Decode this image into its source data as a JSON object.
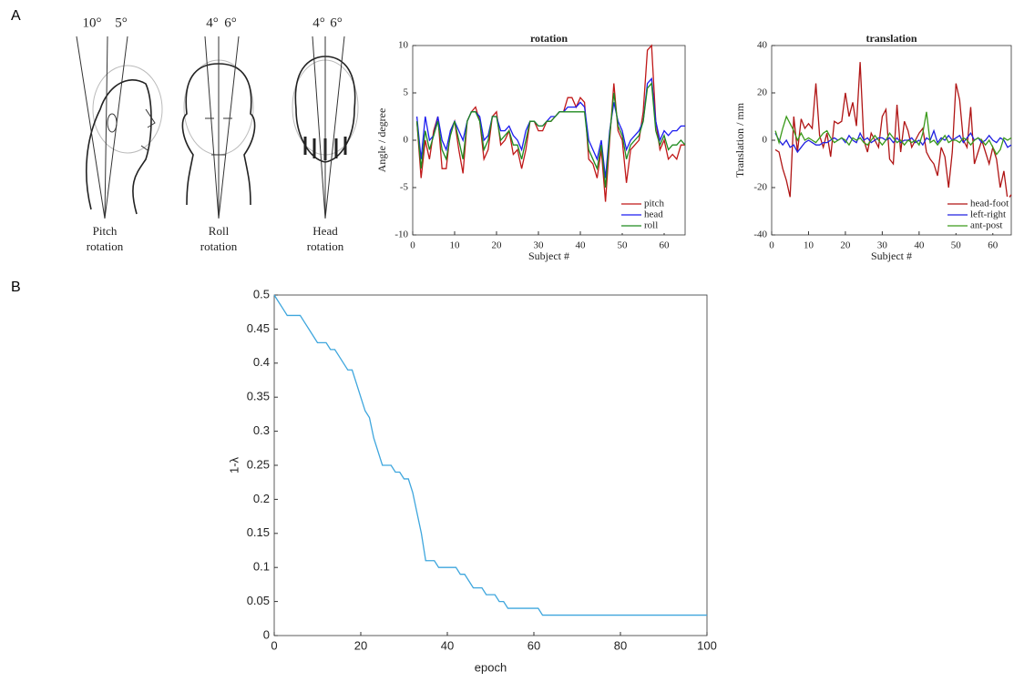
{
  "panel_labels": [
    "A",
    "B"
  ],
  "illustrations": [
    {
      "angles": [
        "10°",
        "5°"
      ],
      "label": [
        "Pitch",
        "rotation"
      ]
    },
    {
      "angles": [
        "4°",
        "6°"
      ],
      "label": [
        "Roll",
        "rotation"
      ]
    },
    {
      "angles": [
        "4°",
        "6°"
      ],
      "label": [
        "Head",
        "rotation"
      ]
    }
  ],
  "chart_data": [
    {
      "type": "line",
      "title": "rotation",
      "xlabel": "Subject #",
      "ylabel": "Angle / degree",
      "x": [
        1,
        2,
        3,
        4,
        5,
        6,
        7,
        8,
        9,
        10,
        11,
        12,
        13,
        14,
        15,
        16,
        17,
        18,
        19,
        20,
        21,
        22,
        23,
        24,
        25,
        26,
        27,
        28,
        29,
        30,
        31,
        32,
        33,
        34,
        35,
        36,
        37,
        38,
        39,
        40,
        41,
        42,
        43,
        44,
        45,
        46,
        47,
        48,
        49,
        50,
        51,
        52,
        53,
        54,
        55,
        56,
        57,
        58,
        59,
        60,
        61,
        62,
        63,
        64,
        65
      ],
      "xlim": [
        0,
        65
      ],
      "xticks": [
        0,
        10,
        20,
        30,
        40,
        50,
        60
      ],
      "ylim": [
        -10,
        10
      ],
      "yticks": [
        -10,
        -5,
        0,
        5,
        10
      ],
      "legend": "lower right",
      "series": [
        {
          "name": "pitch",
          "color": "#c01818",
          "values": [
            2,
            -4,
            0,
            -2,
            1,
            2.5,
            -3,
            -3,
            1,
            2,
            -1,
            -3.5,
            2,
            3,
            3.5,
            2,
            -2,
            -1,
            2.5,
            3,
            -0.5,
            0,
            1,
            -1.5,
            -1,
            -3,
            -1,
            2,
            2,
            1,
            1,
            2,
            2,
            2.5,
            3,
            3,
            4.5,
            4.5,
            3.5,
            4.5,
            4,
            -2,
            -2.5,
            -4,
            -1,
            -6.5,
            0,
            6,
            1,
            0,
            -4.5,
            -1,
            -0.5,
            0,
            3,
            9.5,
            10,
            2,
            -1,
            0,
            -2,
            -1.5,
            -2,
            -0.5,
            -0.5
          ]
        },
        {
          "name": "head",
          "color": "#1c1cf0",
          "values": [
            2.5,
            -2,
            2.5,
            0,
            0.5,
            2.5,
            0,
            -1,
            1,
            2,
            1,
            0,
            2,
            3,
            3,
            2.5,
            0,
            0.5,
            2.5,
            2.5,
            1,
            1,
            1.5,
            0.5,
            0,
            -1,
            1,
            2,
            2,
            1.5,
            1.5,
            2,
            2.5,
            2.5,
            3,
            3,
            3.5,
            3.5,
            3.5,
            4,
            3.5,
            0,
            -1,
            -2,
            0,
            -4,
            1,
            4,
            2,
            1,
            -1,
            0,
            0.5,
            1,
            2,
            6,
            6.5,
            2,
            0,
            1,
            0.5,
            1,
            1,
            1.5,
            1.5
          ]
        },
        {
          "name": "roll",
          "color": "#1f8a1f",
          "values": [
            2,
            -3,
            1,
            -1,
            0.5,
            2,
            -1,
            -2,
            0.5,
            2,
            0,
            -2,
            2,
            3,
            3,
            2,
            -1,
            0,
            2.5,
            2.5,
            0,
            0.5,
            1,
            -0.5,
            -0.5,
            -2,
            0,
            2,
            2,
            1.5,
            1.5,
            2,
            2,
            2.5,
            3,
            3,
            3,
            3,
            3,
            3,
            3,
            -1,
            -2,
            -3,
            -0.5,
            -5,
            0.5,
            5,
            1.5,
            0.5,
            -2,
            -0.5,
            0,
            0.5,
            2,
            5.5,
            6,
            1,
            -0.5,
            0.5,
            -1,
            -0.5,
            -0.5,
            0,
            -0.5
          ]
        }
      ]
    },
    {
      "type": "line",
      "title": "translation",
      "xlabel": "Subject #",
      "ylabel": "Translation / mm",
      "x": [
        1,
        2,
        3,
        4,
        5,
        6,
        7,
        8,
        9,
        10,
        11,
        12,
        13,
        14,
        15,
        16,
        17,
        18,
        19,
        20,
        21,
        22,
        23,
        24,
        25,
        26,
        27,
        28,
        29,
        30,
        31,
        32,
        33,
        34,
        35,
        36,
        37,
        38,
        39,
        40,
        41,
        42,
        43,
        44,
        45,
        46,
        47,
        48,
        49,
        50,
        51,
        52,
        53,
        54,
        55,
        56,
        57,
        58,
        59,
        60,
        61,
        62,
        63,
        64,
        65
      ],
      "xlim": [
        0,
        65
      ],
      "xticks": [
        0,
        10,
        20,
        30,
        40,
        50,
        60
      ],
      "ylim": [
        -40,
        40
      ],
      "yticks": [
        -40,
        -20,
        0,
        20,
        40
      ],
      "legend": "lower right",
      "series": [
        {
          "name": "head-foot",
          "color": "#b01515",
          "values": [
            -4,
            -5,
            -12,
            -17,
            -24,
            10,
            -5,
            9,
            5,
            7,
            5,
            24,
            2,
            -3,
            3,
            -7,
            8,
            7,
            8,
            20,
            10,
            16,
            6,
            33,
            0,
            -5,
            3,
            0,
            -3,
            10,
            13,
            -8,
            -10,
            15,
            -5,
            8,
            4,
            -3,
            0,
            3,
            5,
            -5,
            -8,
            -10,
            -15,
            -3,
            -7,
            -20,
            -5,
            24,
            17,
            0,
            -3,
            14,
            -10,
            -5,
            0,
            -5,
            -10,
            -3,
            -8,
            -20,
            -13,
            -25,
            -23
          ]
        },
        {
          "name": "left-right",
          "color": "#2020e0",
          "values": [
            3,
            0,
            -2,
            0,
            -3,
            -2,
            -5,
            -3,
            -1,
            0,
            -1,
            -2,
            -2,
            -1,
            -1,
            0,
            1,
            0,
            1,
            -1,
            2,
            0,
            -1,
            3,
            0,
            1,
            -1,
            0,
            1,
            1,
            0,
            1,
            -1,
            1,
            -1,
            0,
            0,
            1,
            -1,
            0,
            -2,
            1,
            0,
            4,
            -1,
            1,
            0,
            2,
            0,
            1,
            2,
            -1,
            1,
            3,
            0,
            1,
            -1,
            0,
            2,
            0,
            -1,
            1,
            0,
            -3,
            -2
          ]
        },
        {
          "name": "ant-post",
          "color": "#3a9a1a",
          "values": [
            4,
            -1,
            5,
            10,
            7,
            4,
            0,
            3,
            0,
            1,
            0,
            -1,
            1,
            3,
            4,
            1,
            -1,
            0,
            1,
            0,
            -2,
            1,
            0,
            1,
            -1,
            -2,
            0,
            2,
            0,
            -2,
            0,
            3,
            1,
            -1,
            0,
            -2,
            0,
            -1,
            0,
            -2,
            3,
            12,
            -1,
            0,
            -2,
            0,
            2,
            -1,
            0,
            0,
            -1,
            1,
            0,
            -2,
            0,
            1,
            0,
            -2,
            0,
            -3,
            -6,
            -4,
            1,
            0,
            1
          ]
        }
      ]
    },
    {
      "type": "line",
      "xlabel": "epoch",
      "ylabel": "1-λ",
      "x": [
        0,
        1,
        2,
        3,
        4,
        5,
        6,
        7,
        8,
        9,
        10,
        11,
        12,
        13,
        14,
        15,
        16,
        17,
        18,
        19,
        20,
        21,
        22,
        23,
        24,
        25,
        26,
        27,
        28,
        29,
        30,
        31,
        32,
        33,
        34,
        35,
        36,
        37,
        38,
        39,
        40,
        41,
        42,
        43,
        44,
        45,
        46,
        47,
        48,
        49,
        50,
        51,
        52,
        53,
        54,
        55,
        56,
        57,
        58,
        59,
        60,
        61,
        62,
        63,
        64,
        65,
        66,
        67,
        68,
        69,
        70,
        71,
        72,
        73,
        74,
        75,
        76,
        77,
        78,
        79,
        80,
        81,
        82,
        83,
        84,
        85,
        86,
        87,
        88,
        89,
        90,
        91,
        92,
        93,
        94,
        95,
        96,
        97,
        98,
        99,
        100
      ],
      "xlim": [
        0,
        100
      ],
      "xticks": [
        0,
        20,
        40,
        60,
        80,
        100
      ],
      "ylim": [
        0,
        0.5
      ],
      "yticks": [
        0,
        0.05,
        0.1,
        0.15,
        0.2,
        0.25,
        0.3,
        0.35,
        0.4,
        0.45,
        0.5
      ],
      "series": [
        {
          "color": "#3ea6dd",
          "values": [
            0.5,
            0.49,
            0.48,
            0.47,
            0.47,
            0.47,
            0.47,
            0.46,
            0.45,
            0.44,
            0.43,
            0.43,
            0.43,
            0.42,
            0.42,
            0.41,
            0.4,
            0.39,
            0.39,
            0.37,
            0.35,
            0.33,
            0.32,
            0.29,
            0.27,
            0.25,
            0.25,
            0.25,
            0.24,
            0.24,
            0.23,
            0.23,
            0.21,
            0.18,
            0.15,
            0.11,
            0.11,
            0.11,
            0.1,
            0.1,
            0.1,
            0.1,
            0.1,
            0.09,
            0.09,
            0.08,
            0.07,
            0.07,
            0.07,
            0.06,
            0.06,
            0.06,
            0.05,
            0.05,
            0.04,
            0.04,
            0.04,
            0.04,
            0.04,
            0.04,
            0.04,
            0.04,
            0.03,
            0.03,
            0.03,
            0.03,
            0.03,
            0.03,
            0.03,
            0.03,
            0.03,
            0.03,
            0.03,
            0.03,
            0.03,
            0.03,
            0.03,
            0.03,
            0.03,
            0.03,
            0.03,
            0.03,
            0.03,
            0.03,
            0.03,
            0.03,
            0.03,
            0.03,
            0.03,
            0.03,
            0.03,
            0.03,
            0.03,
            0.03,
            0.03,
            0.03,
            0.03,
            0.03,
            0.03,
            0.03,
            0.03
          ]
        }
      ]
    }
  ]
}
